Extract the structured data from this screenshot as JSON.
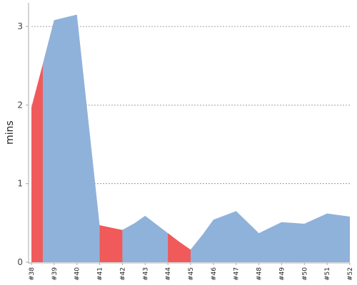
{
  "chart_data": {
    "type": "area",
    "ylabel": "mins",
    "xlabel": "",
    "ylim": [
      0,
      3.3
    ],
    "yticks": [
      0,
      1,
      2,
      3
    ],
    "grid": "horizontal-dashed",
    "categories": [
      "#38",
      "#39",
      "#40",
      "#41",
      "#42",
      "#43",
      "#44",
      "#45",
      "#46",
      "#47",
      "#48",
      "#49",
      "#50",
      "#51",
      "#52"
    ],
    "points": [
      {
        "x": 38.0,
        "y": 1.97,
        "status": "failed"
      },
      {
        "x": 38.5,
        "y": 2.52,
        "status": "failed"
      },
      {
        "x": 39.0,
        "y": 3.08,
        "status": "success"
      },
      {
        "x": 40.0,
        "y": 3.15,
        "status": "success"
      },
      {
        "x": 41.0,
        "y": 0.47,
        "status": "success"
      },
      {
        "x": 41.5,
        "y": 0.44,
        "status": "failed"
      },
      {
        "x": 42.0,
        "y": 0.41,
        "status": "failed"
      },
      {
        "x": 42.5,
        "y": 0.49,
        "status": "success"
      },
      {
        "x": 43.0,
        "y": 0.59,
        "status": "success"
      },
      {
        "x": 44.0,
        "y": 0.37,
        "status": "success"
      },
      {
        "x": 44.5,
        "y": 0.26,
        "status": "failed"
      },
      {
        "x": 45.0,
        "y": 0.16,
        "status": "failed"
      },
      {
        "x": 45.5,
        "y": 0.34,
        "status": "success"
      },
      {
        "x": 46.0,
        "y": 0.54,
        "status": "success"
      },
      {
        "x": 47.0,
        "y": 0.65,
        "status": "success"
      },
      {
        "x": 48.0,
        "y": 0.37,
        "status": "success"
      },
      {
        "x": 49.0,
        "y": 0.51,
        "status": "success"
      },
      {
        "x": 50.0,
        "y": 0.49,
        "status": "success"
      },
      {
        "x": 51.0,
        "y": 0.62,
        "status": "success"
      },
      {
        "x": 52.0,
        "y": 0.58,
        "status": "success"
      }
    ],
    "colors": {
      "success": "#8fb2da",
      "failed": "#f05a5a",
      "grid": "#888888",
      "axis": "#aaaaaa"
    }
  }
}
